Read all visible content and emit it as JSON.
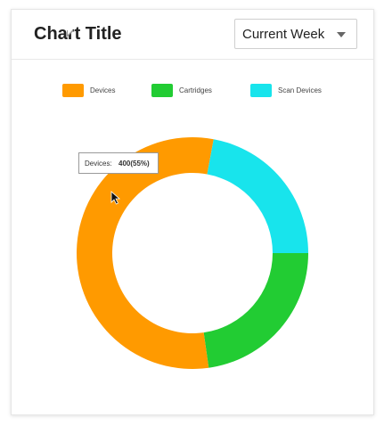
{
  "header": {
    "title": "Chart Title",
    "period_select": {
      "value": "Current Week"
    }
  },
  "tooltip": {
    "label": "Devices:",
    "value": "400(55%)"
  },
  "chart_data": {
    "type": "pie",
    "variant": "donut",
    "title": "Chart Title",
    "legend_position": "top",
    "categories": [
      "Devices",
      "Cartridges",
      "Scan Devices"
    ],
    "values": [
      400,
      165,
      160
    ],
    "colors": [
      "#ff9a00",
      "#22cc33",
      "#18e4ec"
    ]
  }
}
